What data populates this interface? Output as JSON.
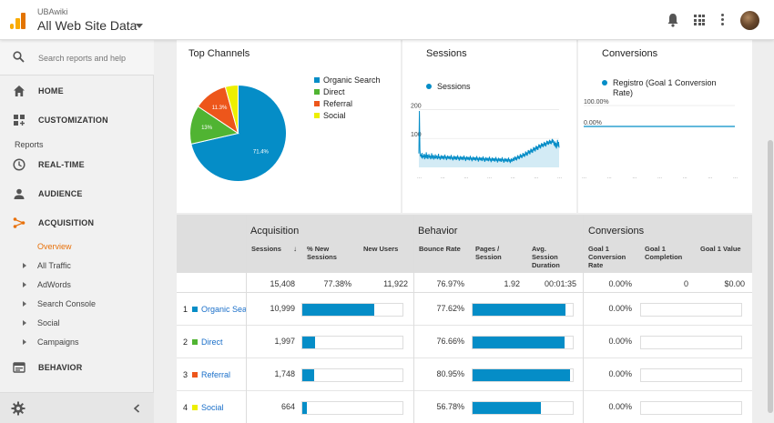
{
  "header": {
    "account": "UBAwiki",
    "property": "All Web Site Data"
  },
  "colors": {
    "accent": "#058dc7",
    "organic": "#058dc7",
    "direct": "#50b432",
    "referral": "#ed561b",
    "social": "#edef00",
    "active_nav": "#e8710a"
  },
  "sidebar": {
    "search_placeholder": "Search reports and help",
    "items": [
      {
        "label": "HOME",
        "icon": "home-icon"
      },
      {
        "label": "CUSTOMIZATION",
        "icon": "dashboard-icon"
      }
    ],
    "reports_label": "Reports",
    "reports": [
      {
        "label": "REAL-TIME",
        "icon": "clock-icon"
      },
      {
        "label": "AUDIENCE",
        "icon": "person-icon"
      },
      {
        "label": "ACQUISITION",
        "icon": "acquisition-icon"
      }
    ],
    "acquisition_sub": {
      "active": "Overview",
      "items": [
        "All Traffic",
        "AdWords",
        "Search Console",
        "Social",
        "Campaigns"
      ]
    },
    "behavior": {
      "label": "BEHAVIOR",
      "icon": "behavior-icon"
    }
  },
  "top_channels": {
    "title": "Top Channels",
    "legend": [
      "Organic Search",
      "Direct",
      "Referral",
      "Social"
    ]
  },
  "sessions_card": {
    "title": "Sessions",
    "legend": "Sessions"
  },
  "conversions_card": {
    "title": "Conversions",
    "legend": "Registro (Goal 1 Conversion Rate)"
  },
  "chart_data": [
    {
      "type": "pie",
      "categories": [
        "Organic Search",
        "Direct",
        "Referral",
        "Social"
      ],
      "values": [
        71.4,
        13,
        11.3,
        4.3
      ],
      "labels": [
        "71.4%",
        "13%",
        "11.3%",
        ""
      ],
      "colors": [
        "#058dc7",
        "#50b432",
        "#ed561b",
        "#edef00"
      ]
    },
    {
      "type": "area",
      "series": [
        {
          "name": "Sessions",
          "values": [
            48,
            195,
            60,
            38,
            45,
            33,
            50,
            30,
            42,
            35,
            47,
            28,
            40,
            36,
            52,
            31,
            44,
            29,
            38,
            46,
            33,
            41,
            28,
            35,
            49,
            30,
            37,
            43,
            27,
            39,
            34,
            45,
            30,
            36,
            41,
            28,
            33,
            47,
            31,
            38,
            26,
            35,
            42,
            29,
            37,
            33,
            40,
            27,
            36,
            44,
            30,
            38,
            25,
            34,
            41,
            29,
            36,
            32,
            39,
            27,
            35,
            43,
            28,
            36,
            24,
            33,
            40,
            27,
            35,
            30,
            38,
            26,
            34,
            42,
            28,
            36,
            23,
            32,
            39,
            26,
            34,
            30,
            37,
            25,
            33,
            41,
            27,
            35,
            22,
            31,
            38,
            26,
            33,
            29,
            36,
            24,
            32,
            40,
            26,
            34,
            21,
            30,
            37,
            25,
            32,
            28,
            35,
            23,
            31,
            39,
            25,
            33,
            20,
            29,
            36,
            24,
            31,
            27,
            34,
            22,
            30,
            38,
            24,
            32,
            19,
            28,
            35,
            23,
            30,
            26,
            33,
            21,
            29,
            37,
            23,
            31,
            18,
            27,
            34,
            22,
            29,
            25,
            32,
            20,
            28,
            36,
            22,
            30,
            17,
            26,
            33,
            21,
            28,
            24,
            31,
            19,
            27,
            35,
            21,
            29,
            16,
            25,
            32,
            20,
            27,
            23,
            30,
            18,
            26,
            34,
            20,
            28,
            15,
            24,
            31,
            19,
            27,
            25,
            34,
            22,
            30,
            38,
            26,
            35,
            24,
            33,
            42,
            30,
            39,
            28,
            37,
            46,
            34,
            43,
            32,
            41,
            50,
            38,
            47,
            36,
            45,
            55,
            42,
            52,
            40,
            50,
            60,
            48,
            58,
            45,
            56,
            65,
            52,
            62,
            50,
            60,
            70,
            58,
            68,
            55,
            66,
            75,
            62,
            72,
            60,
            70,
            80,
            68,
            78,
            65,
            74,
            84,
            72,
            82,
            70,
            78,
            88,
            75,
            85,
            72,
            82,
            92,
            80,
            90,
            78,
            85,
            95,
            82,
            92,
            80,
            88,
            98,
            85,
            95,
            82,
            75,
            90,
            70,
            85,
            65,
            80,
            95,
            72,
            88,
            68
          ]
        }
      ],
      "y_ticks": [
        "200",
        "100"
      ],
      "ylim": [
        0,
        220
      ]
    },
    {
      "type": "line",
      "series": [
        {
          "name": "Registro (Goal 1 Conversion Rate)",
          "values": [
            0,
            0,
            0,
            0,
            0,
            0,
            0,
            0,
            0,
            0
          ]
        }
      ],
      "y_ticks": [
        "100.00%",
        "0.00%"
      ],
      "ylim": [
        0,
        100
      ]
    }
  ],
  "table": {
    "groups": {
      "acquisition": "Acquisition",
      "behavior": "Behavior",
      "conversions": "Conversions"
    },
    "columns": {
      "sessions": "Sessions",
      "new_sessions": "% New Sessions",
      "new_users": "New Users",
      "bounce_rate": "Bounce Rate",
      "pages_session": "Pages / Session",
      "avg_duration": "Avg. Session Duration",
      "goal_rate": "Goal 1 Conversion Rate",
      "goal_completion": "Goal 1 Completion",
      "goal_value": "Goal 1 Value"
    },
    "totals": {
      "sessions": "15,408",
      "new_sessions": "77.38%",
      "new_users": "11,922",
      "bounce_rate": "76.97%",
      "pages_session": "1.92",
      "avg_duration": "00:01:35",
      "goal_rate": "0.00%",
      "goal_completion": "0",
      "goal_value": "$0.00"
    },
    "rows": [
      {
        "index": "1",
        "name": "Organic Search",
        "sessions": "10,999",
        "sessions_share": 0.714,
        "bounce_rate": "77.62%",
        "bounce_share": 0.7762,
        "goal_rate": "0.00%",
        "color": "#058dc7"
      },
      {
        "index": "2",
        "name": "Direct",
        "sessions": "1,997",
        "sessions_share": 0.13,
        "bounce_rate": "76.66%",
        "bounce_share": 0.7666,
        "goal_rate": "0.00%",
        "color": "#50b432"
      },
      {
        "index": "3",
        "name": "Referral",
        "sessions": "1,748",
        "sessions_share": 0.113,
        "bounce_rate": "80.95%",
        "bounce_share": 0.8095,
        "goal_rate": "0.00%",
        "color": "#ed561b"
      },
      {
        "index": "4",
        "name": "Social",
        "sessions": "664",
        "sessions_share": 0.043,
        "bounce_rate": "56.78%",
        "bounce_share": 0.5678,
        "goal_rate": "0.00%",
        "color": "#edef00"
      }
    ]
  }
}
